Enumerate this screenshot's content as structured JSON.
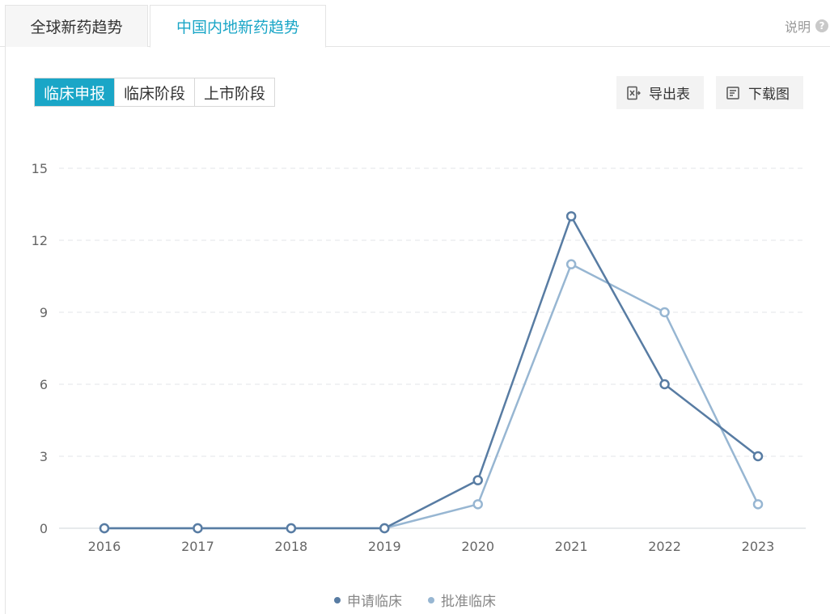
{
  "tabs": [
    {
      "label": "全球新药趋势",
      "active": false
    },
    {
      "label": "中国内地新药趋势",
      "active": true
    }
  ],
  "help": {
    "label": "说明",
    "icon": "question-circle-icon"
  },
  "segments": [
    {
      "label": "临床申报",
      "active": true
    },
    {
      "label": "临床阶段",
      "active": false
    },
    {
      "label": "上市阶段",
      "active": false
    }
  ],
  "actions": {
    "export_label": "导出表",
    "export_icon": "excel-export-icon",
    "download_label": "下载图",
    "download_icon": "document-download-icon"
  },
  "colors": {
    "accent": "#1aa6c7",
    "series_dark": "#587ca3",
    "series_light": "#97b6d2",
    "grid": "#e3e6ea",
    "axis_text": "#666666"
  },
  "chart_data": {
    "type": "line",
    "x": [
      "2016",
      "2017",
      "2018",
      "2019",
      "2020",
      "2021",
      "2022",
      "2023"
    ],
    "series": [
      {
        "name": "申请临床",
        "values": [
          0,
          0,
          0,
          0,
          2,
          13,
          6,
          3
        ],
        "color": "#587ca3"
      },
      {
        "name": "批准临床",
        "values": [
          0,
          0,
          0,
          0,
          1,
          11,
          9,
          1
        ],
        "color": "#97b6d2"
      }
    ],
    "yticks": [
      "0",
      "3",
      "6",
      "9",
      "12",
      "15"
    ],
    "ylim": [
      0,
      15
    ],
    "grid": true,
    "legend_position": "bottom-center"
  }
}
